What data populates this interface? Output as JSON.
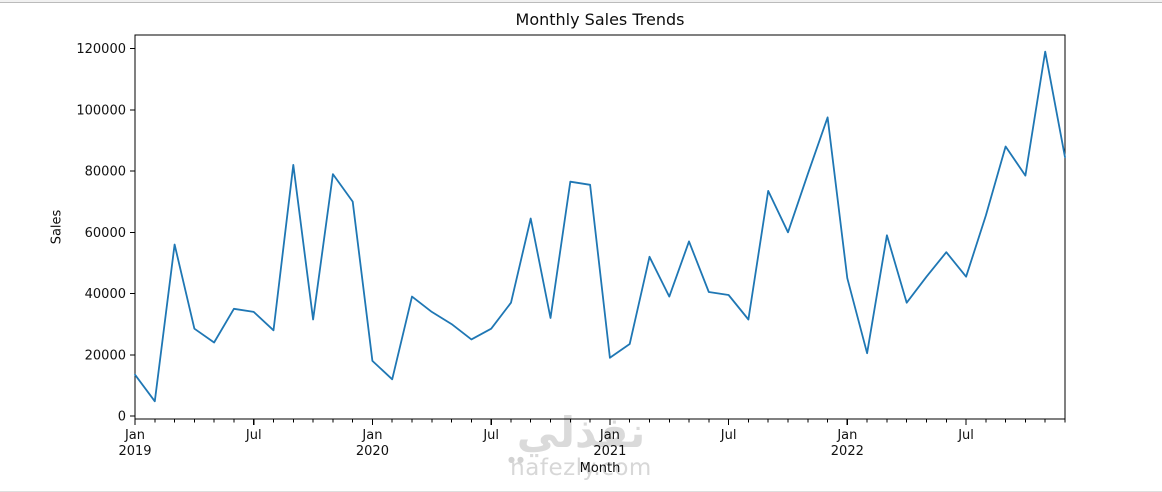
{
  "figure": {
    "title": "Monthly Sales Trends"
  },
  "chart_data": {
    "type": "line",
    "title": "Monthly Sales Trends",
    "xlabel": "Month",
    "ylabel": "Sales",
    "line_color": "#1f77b4",
    "grid": false,
    "legend": null,
    "ylim": [
      0,
      120000
    ],
    "y_ticks": [
      0,
      20000,
      40000,
      60000,
      80000,
      100000,
      120000
    ],
    "x_minor_tick_every_month": true,
    "x_major_ticks": [
      {
        "i": 0,
        "line1": "Jan",
        "line2": "2019"
      },
      {
        "i": 6,
        "line1": "Jul",
        "line2": ""
      },
      {
        "i": 12,
        "line1": "Jan",
        "line2": "2020"
      },
      {
        "i": 18,
        "line1": "Jul",
        "line2": ""
      },
      {
        "i": 24,
        "line1": "Jan",
        "line2": "2021"
      },
      {
        "i": 30,
        "line1": "Jul",
        "line2": ""
      },
      {
        "i": 36,
        "line1": "Jan",
        "line2": "2022"
      },
      {
        "i": 42,
        "line1": "Jul",
        "line2": ""
      }
    ],
    "x": [
      "2019-01",
      "2019-02",
      "2019-03",
      "2019-04",
      "2019-05",
      "2019-06",
      "2019-07",
      "2019-08",
      "2019-09",
      "2019-10",
      "2019-11",
      "2019-12",
      "2020-01",
      "2020-02",
      "2020-03",
      "2020-04",
      "2020-05",
      "2020-06",
      "2020-07",
      "2020-08",
      "2020-09",
      "2020-10",
      "2020-11",
      "2020-12",
      "2021-01",
      "2021-02",
      "2021-03",
      "2021-04",
      "2021-05",
      "2021-06",
      "2021-07",
      "2021-08",
      "2021-09",
      "2021-10",
      "2021-11",
      "2021-12",
      "2022-01",
      "2022-02",
      "2022-03",
      "2022-04",
      "2022-05",
      "2022-06",
      "2022-07",
      "2022-08",
      "2022-09",
      "2022-10",
      "2022-11",
      "2022-12"
    ],
    "values": [
      13500,
      4800,
      56000,
      28500,
      24000,
      35000,
      34000,
      28000,
      82000,
      31500,
      79000,
      70000,
      18000,
      12000,
      39000,
      34000,
      30000,
      25000,
      28500,
      37000,
      64500,
      32000,
      76500,
      75500,
      19000,
      23500,
      52000,
      39000,
      57000,
      40500,
      39500,
      31500,
      73500,
      60000,
      79000,
      97500,
      45000,
      20500,
      59000,
      37000,
      45500,
      53500,
      45500,
      65500,
      88000,
      78500,
      119000,
      84500
    ]
  },
  "watermark": {
    "arabic": "نفذلي",
    "dots": "●●",
    "domain": "nafezly.com"
  }
}
